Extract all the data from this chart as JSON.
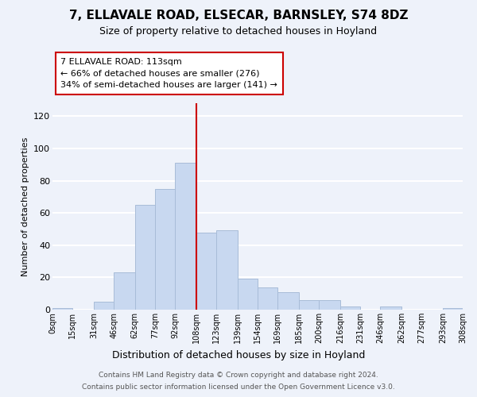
{
  "title": "7, ELLAVALE ROAD, ELSECAR, BARNSLEY, S74 8DZ",
  "subtitle": "Size of property relative to detached houses in Hoyland",
  "xlabel": "Distribution of detached houses by size in Hoyland",
  "ylabel": "Number of detached properties",
  "bar_color": "#c8d8f0",
  "bar_edge_color": "#a8bcd8",
  "background_color": "#eef2fa",
  "grid_color": "white",
  "annotation_line_color": "#cc0000",
  "annotation_box_edge": "#cc0000",
  "bins": [
    0,
    15,
    31,
    46,
    62,
    77,
    92,
    108,
    123,
    139,
    154,
    169,
    185,
    200,
    216,
    231,
    246,
    262,
    277,
    293,
    308
  ],
  "bin_labels": [
    "0sqm",
    "15sqm",
    "31sqm",
    "46sqm",
    "62sqm",
    "77sqm",
    "92sqm",
    "108sqm",
    "123sqm",
    "139sqm",
    "154sqm",
    "169sqm",
    "185sqm",
    "200sqm",
    "216sqm",
    "231sqm",
    "246sqm",
    "262sqm",
    "277sqm",
    "293sqm",
    "308sqm"
  ],
  "counts": [
    1,
    0,
    5,
    23,
    65,
    75,
    91,
    48,
    49,
    19,
    14,
    11,
    6,
    6,
    2,
    0,
    2,
    0,
    0,
    1
  ],
  "marker_value": 108,
  "annotation_title": "7 ELLAVALE ROAD: 113sqm",
  "annotation_line1": "← 66% of detached houses are smaller (276)",
  "annotation_line2": "34% of semi-detached houses are larger (141) →",
  "footer1": "Contains HM Land Registry data © Crown copyright and database right 2024.",
  "footer2": "Contains public sector information licensed under the Open Government Licence v3.0.",
  "yticks": [
    0,
    20,
    40,
    60,
    80,
    100,
    120
  ],
  "ylim": [
    0,
    128
  ]
}
